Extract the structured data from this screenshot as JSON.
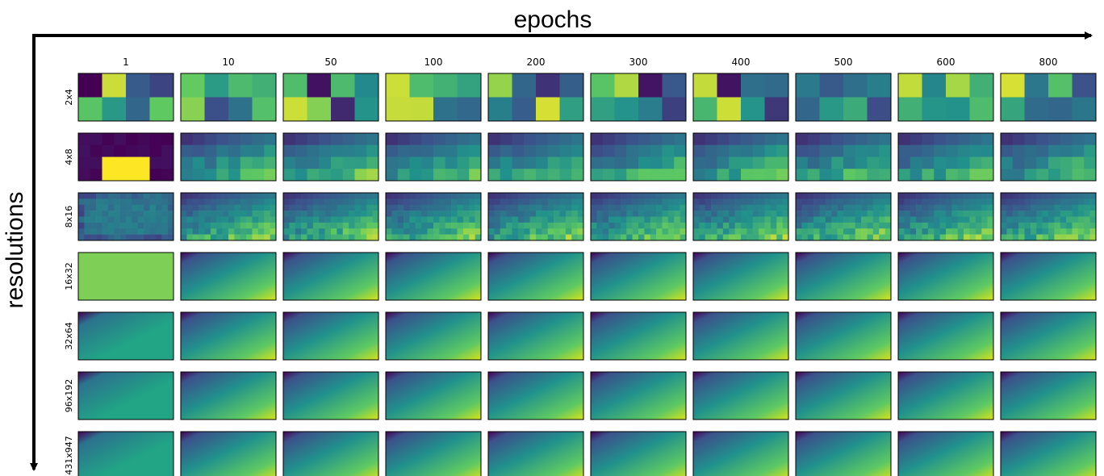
{
  "axes": {
    "x_label": "epochs",
    "y_label": "resolutions"
  },
  "columns": [
    "1",
    "10",
    "50",
    "100",
    "200",
    "300",
    "400",
    "500",
    "600",
    "800"
  ],
  "rows": [
    "2x4",
    "4x8",
    "8x16",
    "16x32",
    "32x64",
    "96x192",
    "431x947"
  ]
}
